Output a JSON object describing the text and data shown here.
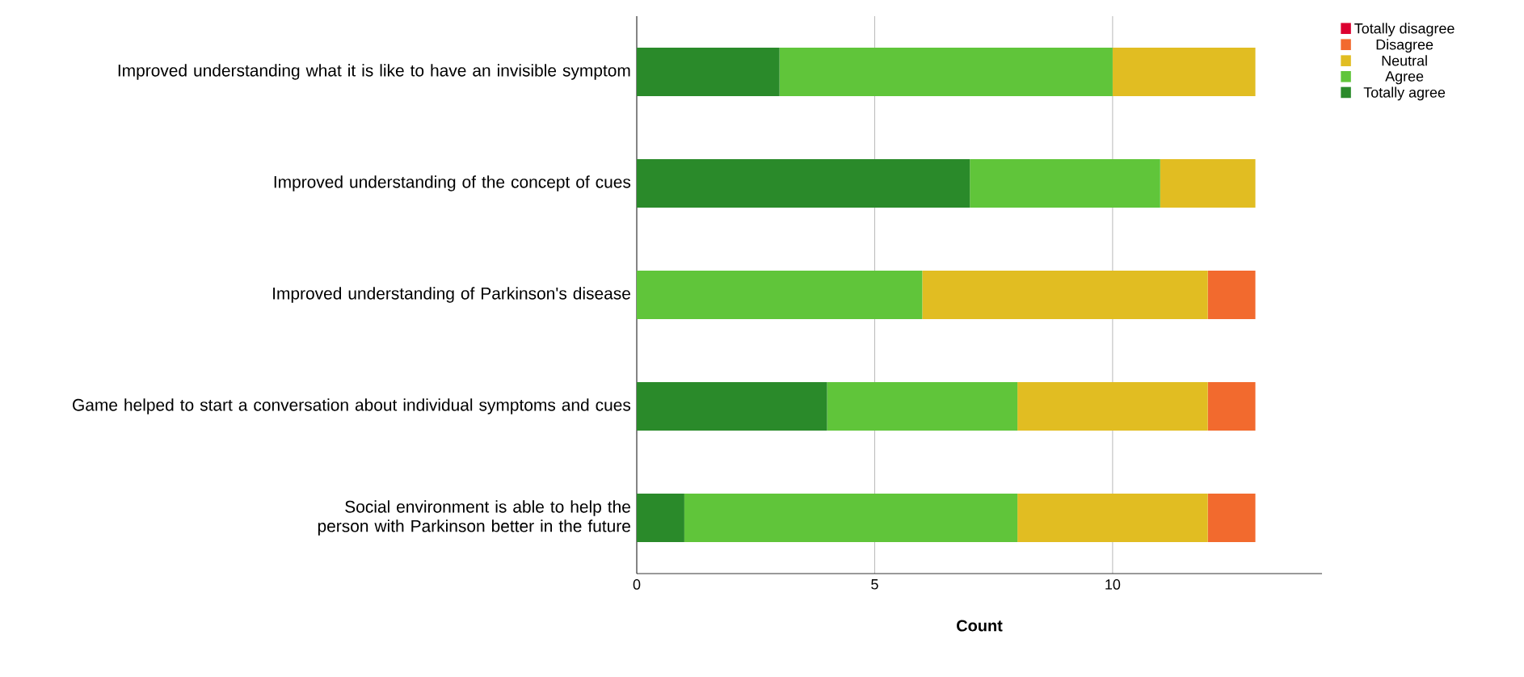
{
  "chart_data": {
    "type": "bar",
    "orientation": "horizontal",
    "stacked": true,
    "xlabel": "Count",
    "categories": [
      "Improved understanding what it is like to have an invisible symptom",
      "Improved understanding of the concept of cues",
      "Improved understanding of Parkinson's disease",
      "Game helped to start a conversation about individual symptoms and cues",
      "Social environment is able to help the person with Parkinson better in the future"
    ],
    "series": [
      {
        "name": "Totally agree",
        "color": "#2a8a2a",
        "values": [
          3,
          7,
          0,
          4,
          1
        ]
      },
      {
        "name": "Agree",
        "color": "#60c53a",
        "values": [
          7,
          4,
          6,
          4,
          7
        ]
      },
      {
        "name": "Neutral",
        "color": "#e1bd22",
        "values": [
          3,
          2,
          6,
          4,
          4
        ]
      },
      {
        "name": "Disagree",
        "color": "#f26a2e",
        "values": [
          0,
          0,
          1,
          1,
          1
        ]
      },
      {
        "name": "Totally disagree",
        "color": "#dc0030",
        "values": [
          0,
          0,
          0,
          0,
          0
        ]
      }
    ],
    "xlim": [
      0,
      14.4
    ],
    "xticks": [
      0,
      5,
      10
    ],
    "grid": "x",
    "legend": "top right"
  }
}
